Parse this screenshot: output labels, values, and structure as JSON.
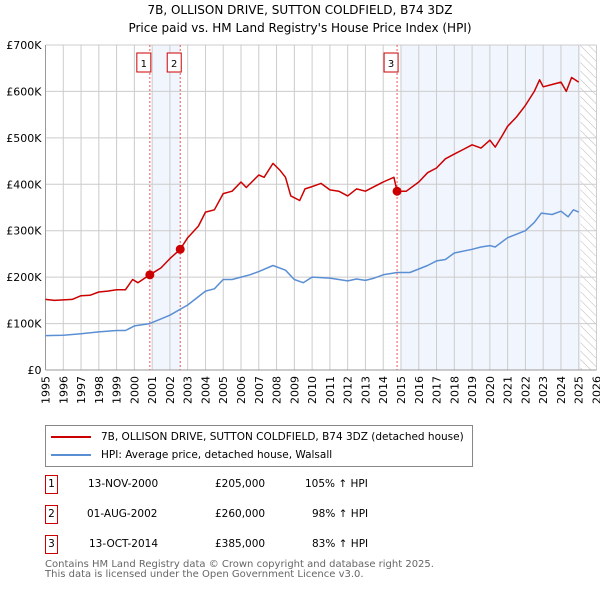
{
  "title": "7B, OLLISON DRIVE, SUTTON COLDFIELD, B74 3DZ",
  "subtitle": "Price paid vs. HM Land Registry's House Price Index (HPI)",
  "chart_data": {
    "type": "line",
    "title": "7B, OLLISON DRIVE, SUTTON COLDFIELD, B74 3DZ",
    "subtitle": "Price paid vs. HM Land Registry's House Price Index (HPI)",
    "xlim": [
      1995,
      2026
    ],
    "ylim": [
      0,
      700000
    ],
    "grid": true,
    "x_ticks": [
      "1995",
      "1996",
      "1997",
      "1998",
      "1999",
      "2000",
      "2001",
      "2002",
      "2003",
      "2004",
      "2005",
      "2006",
      "2007",
      "2008",
      "2009",
      "2010",
      "2011",
      "2012",
      "2013",
      "2014",
      "2015",
      "2016",
      "2017",
      "2018",
      "2019",
      "2020",
      "2021",
      "2022",
      "2023",
      "2024",
      "2025",
      "2026"
    ],
    "y_ticks": [
      {
        "v": 0,
        "label": "£0"
      },
      {
        "v": 100000,
        "label": "£100K"
      },
      {
        "v": 200000,
        "label": "£200K"
      },
      {
        "v": 300000,
        "label": "£300K"
      },
      {
        "v": 400000,
        "label": "£400K"
      },
      {
        "v": 500000,
        "label": "£500K"
      },
      {
        "v": 600000,
        "label": "£600K"
      },
      {
        "v": 700000,
        "label": "£700K"
      }
    ],
    "shaded_ranges": [
      [
        2001.0,
        2002.58
      ],
      [
        2015.0,
        2025.1
      ]
    ],
    "forecast_hatch_from": 2025.1,
    "series": [
      {
        "name": "7B, OLLISON DRIVE, SUTTON COLDFIELD, B74 3DZ (detached house)",
        "color": "#cc0000",
        "x": [
          1995,
          1995.5,
          1996,
          1996.5,
          1997,
          1997.5,
          1998,
          1998.5,
          1999,
          1999.5,
          1999.9,
          2000.2,
          2000.87,
          2001.5,
          2002,
          2002.58,
          2003,
          2003.6,
          2004,
          2004.5,
          2005,
          2005.5,
          2006,
          2006.3,
          2007,
          2007.3,
          2007.8,
          2008.2,
          2008.5,
          2008.8,
          2009.3,
          2009.6,
          2010,
          2010.5,
          2011,
          2011.5,
          2012,
          2012.5,
          2013,
          2013.5,
          2014,
          2014.6,
          2014.78,
          2015.3,
          2016,
          2016.5,
          2017,
          2017.5,
          2018,
          2018.5,
          2019,
          2019.5,
          2020,
          2020.3,
          2020.7,
          2021,
          2021.5,
          2022,
          2022.5,
          2022.8,
          2023,
          2023.5,
          2024,
          2024.3,
          2024.6,
          2025
        ],
        "y": [
          152000,
          150000,
          151000,
          152000,
          160000,
          161000,
          168000,
          170000,
          173000,
          173000,
          195000,
          188000,
          205000,
          220000,
          240000,
          260000,
          285000,
          310000,
          340000,
          345000,
          380000,
          385000,
          405000,
          393000,
          420000,
          415000,
          445000,
          430000,
          415000,
          375000,
          365000,
          390000,
          395000,
          402000,
          388000,
          385000,
          375000,
          390000,
          385000,
          395000,
          405000,
          415000,
          385000,
          385000,
          405000,
          425000,
          435000,
          455000,
          465000,
          475000,
          485000,
          478000,
          495000,
          480000,
          505000,
          525000,
          545000,
          570000,
          600000,
          625000,
          610000,
          615000,
          620000,
          600000,
          630000,
          620000
        ]
      },
      {
        "name": "HPI: Average price, detached house, Walsall",
        "color": "#5b8fd4",
        "x": [
          1995,
          1996,
          1997,
          1998,
          1999,
          1999.5,
          2000,
          2000.87,
          2002,
          2003,
          2004,
          2004.5,
          2005,
          2005.5,
          2006,
          2006.5,
          2007,
          2007.8,
          2008.5,
          2009,
          2009.5,
          2010,
          2011,
          2011.5,
          2012,
          2012.5,
          2013,
          2013.5,
          2014,
          2014.78,
          2015.5,
          2016.5,
          2017,
          2017.5,
          2018,
          2019,
          2019.5,
          2020,
          2020.3,
          2021,
          2022,
          2022.5,
          2022.9,
          2023.5,
          2024,
          2024.4,
          2024.7,
          2025
        ],
        "y": [
          74000,
          75000,
          78000,
          82000,
          85000,
          85000,
          95000,
          100000,
          118000,
          140000,
          170000,
          175000,
          195000,
          195000,
          200000,
          205000,
          212000,
          225000,
          215000,
          195000,
          188000,
          200000,
          198000,
          195000,
          192000,
          196000,
          193000,
          198000,
          205000,
          210000,
          210000,
          225000,
          235000,
          238000,
          252000,
          260000,
          265000,
          268000,
          265000,
          285000,
          300000,
          318000,
          338000,
          335000,
          342000,
          330000,
          345000,
          340000
        ]
      }
    ],
    "sales": [
      {
        "label": "1",
        "x": 2000.87,
        "y": 205000
      },
      {
        "label": "2",
        "x": 2002.58,
        "y": 260000
      },
      {
        "label": "3",
        "x": 2014.78,
        "y": 385000
      }
    ]
  },
  "legend": {
    "property": "7B, OLLISON DRIVE, SUTTON COLDFIELD, B74 3DZ (detached house)",
    "hpi": "HPI: Average price, detached house, Walsall"
  },
  "transactions": [
    {
      "num": "1",
      "date": "13-NOV-2000",
      "price": "£205,000",
      "hpi": "105% ↑ HPI"
    },
    {
      "num": "2",
      "date": "01-AUG-2002",
      "price": "£260,000",
      "hpi": "98% ↑ HPI"
    },
    {
      "num": "3",
      "date": "13-OCT-2014",
      "price": "£385,000",
      "hpi": "83% ↑ HPI"
    }
  ],
  "footer": {
    "line1": "Contains HM Land Registry data © Crown copyright and database right 2025.",
    "line2": "This data is licensed under the Open Government Licence v3.0."
  }
}
